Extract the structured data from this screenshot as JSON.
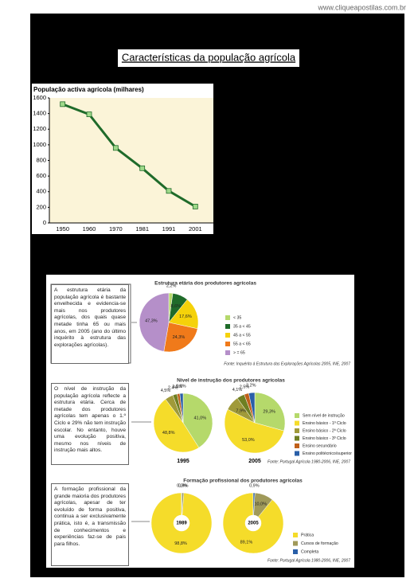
{
  "watermark": "www.cliqueapostilas.com.br",
  "title": "Características da população agrícola",
  "notes": [
    "A estrutura etária da população agrícola é bastante envelhecida e evidencia-se mais nos produtores agrícolas, dos quais quase metade tinha 65 ou mais anos, em 2005 (ano do último inquérito à estrutura das explorações agrícolas).",
    "O nível de instrução da população agrícola reflecte a estrutura etária. Cerca de metade dos produtores agrícolas tem apenas o 1.º Ciclo e 29% não tem instrução escolar. No entanto, houve uma evolução positiva, mesmo nos níveis de instrução mais altos.",
    "A formação profissional da grande maioria dos produtores agrícolas, apesar de ter evoluído de forma positiva, continua a ser exclusivamente prática, isto é, a transmissão de conhecimentos e experiências faz-se de pais para filhos."
  ],
  "chart_data": [
    {
      "type": "line",
      "title": "População activa agrícola (milhares)",
      "categories": [
        "1950",
        "1960",
        "1970",
        "1981",
        "1991",
        "2001"
      ],
      "values": [
        1520,
        1390,
        960,
        700,
        410,
        210
      ],
      "color": "#1f6b2a",
      "marker_color": "#9fd98a",
      "ylim": [
        0,
        1600
      ],
      "yticks": [
        0,
        200,
        400,
        600,
        800,
        1000,
        1200,
        1400,
        1600
      ]
    },
    {
      "type": "pie",
      "title": "Estrutura etária dos produtores agrícolas",
      "categories": [
        "< 35",
        "35 a < 45",
        "45 a < 55",
        "55 a < 65",
        "> = 65"
      ],
      "colors": [
        "#b5d96b",
        "#1f6b2a",
        "#f5d20a",
        "#f07a1a",
        "#b58fc9"
      ],
      "values": [
        2.2,
        8.6,
        17.6,
        24.3,
        47.3
      ],
      "value_labels": [
        "2,2%",
        "8,6%",
        "17,6%",
        "24,3%",
        "47,3%"
      ],
      "source": "Fonte: Inquérito à Estrutura das Explorações Agrícolas 2005, INE, 2007"
    },
    {
      "type": "pie",
      "title": "Nível de instrução dos produtores agrícolas",
      "categories": [
        "Sem nível de instrução",
        "Ensino básico - 1º Ciclo",
        "Ensino básico - 2º Ciclo",
        "Ensino básico - 3º Ciclo",
        "Ensino secundário",
        "Ensino politécnico/superior"
      ],
      "colors": [
        "#b5d96b",
        "#f5dc2a",
        "#a09a3a",
        "#6f7f22",
        "#c0601a",
        "#2a5fa8"
      ],
      "series": [
        {
          "name": "1995",
          "values": [
            41.0,
            48.8,
            4.5,
            2.4,
            1.5,
            1.8
          ],
          "value_labels": [
            "41,0%",
            "48,8%",
            "4,5%",
            "2,4%",
            "1,5%",
            "1,8%"
          ]
        },
        {
          "name": "2005",
          "values": [
            29.3,
            53.0,
            7.9,
            4.1,
            2.5,
            3.2
          ],
          "value_labels": [
            "29,3%",
            "53,0%",
            "7,9%",
            "4,1%",
            "2,5%",
            "3,2%"
          ]
        }
      ],
      "source": "Fonte: Portugal Agrícola 1980-2006, INE, 2007"
    },
    {
      "type": "doughnut",
      "title": "Formação profissional dos produtores agrícolas",
      "categories": [
        "Prática",
        "Cursos de formação",
        "Completa"
      ],
      "colors": [
        "#f5dc2a",
        "#a09a5a",
        "#2a5fa8"
      ],
      "series": [
        {
          "name": "1989",
          "values": [
            98.8,
            0.9,
            0.3
          ],
          "value_labels": [
            "98,8%",
            "0,9%",
            "0,3%"
          ]
        },
        {
          "name": "2005",
          "values": [
            89.1,
            10.0,
            0.9
          ],
          "value_labels": [
            "89,1%",
            "10,0%",
            "0,9%"
          ]
        }
      ],
      "source": "Fonte: Portugal Agrícola 1980-2006, INE, 2007"
    }
  ]
}
